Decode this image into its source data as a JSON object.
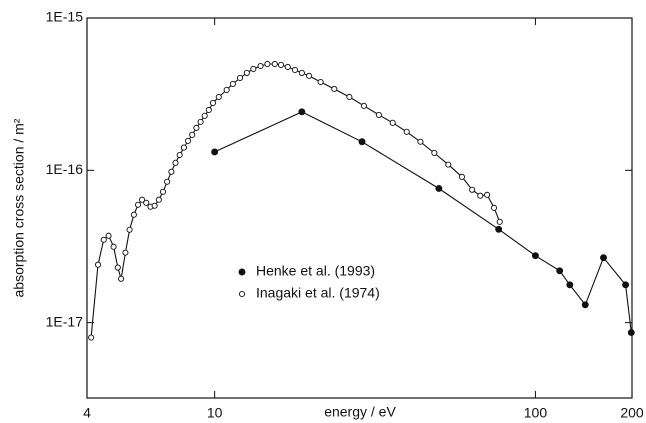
{
  "chart_data": {
    "type": "line",
    "xlabel": "energy / eV",
    "ylabel": "absorption cross section / m²",
    "xscale": "log",
    "yscale": "log",
    "xlim": [
      4,
      200
    ],
    "xticks": [
      4,
      10,
      100,
      200
    ],
    "ylim": [
      3.2e-18,
      1e-15
    ],
    "yticks": [
      {
        "value": 1e-17,
        "label": "1E-17"
      },
      {
        "value": 1e-16,
        "label": "1E-16"
      },
      {
        "value": 1e-15,
        "label": "1E-15"
      }
    ],
    "legend": "lower-center",
    "series": [
      {
        "name": "Henke et al. (1993)",
        "color": "#111111",
        "marker": "filled",
        "x": [
          10,
          18.7,
          28.8,
          50,
          76.8,
          100,
          119,
          128,
          143,
          163,
          191,
          199
        ],
        "values": [
          1.32e-16,
          2.42e-16,
          1.54e-16,
          7.6e-17,
          4.1e-17,
          2.75e-17,
          2.19e-17,
          1.77e-17,
          1.31e-17,
          2.67e-17,
          1.77e-17,
          8.6e-18
        ]
      },
      {
        "name": "Inagaki et al. (1974)",
        "color": "#111111",
        "marker": "open",
        "x": [
          4.12,
          4.33,
          4.51,
          4.67,
          4.84,
          4.99,
          5.11,
          5.27,
          5.43,
          5.6,
          5.77,
          5.94,
          6.12,
          6.31,
          6.5,
          6.7,
          6.9,
          7.11,
          7.33,
          7.55,
          7.78,
          8.02,
          8.26,
          8.51,
          8.77,
          9.04,
          9.31,
          9.59,
          9.88,
          10.3,
          10.9,
          11.4,
          12.0,
          12.6,
          13.2,
          13.9,
          14.6,
          15.4,
          16.1,
          16.9,
          17.8,
          18.7,
          19.7,
          21.4,
          23.6,
          26.3,
          29.2,
          32.5,
          35.9,
          39.7,
          43.8,
          48.4,
          53.5,
          59.0,
          63.5,
          67.3,
          70.7,
          74.3,
          77.4
        ],
        "values": [
          7.98e-18,
          2.4e-17,
          3.5e-17,
          3.72e-17,
          3.15e-17,
          2.3e-17,
          1.94e-17,
          2.88e-17,
          4.07e-17,
          5.11e-17,
          5.94e-17,
          6.41e-17,
          6.12e-17,
          5.77e-17,
          5.85e-17,
          6.41e-17,
          7.23e-17,
          8.41e-17,
          9.78e-17,
          1.12e-16,
          1.26e-16,
          1.41e-16,
          1.56e-16,
          1.71e-16,
          1.9e-16,
          2.08e-16,
          2.28e-16,
          2.49e-16,
          2.77e-16,
          3.03e-16,
          3.37e-16,
          3.69e-16,
          4.04e-16,
          4.36e-16,
          4.63e-16,
          4.84e-16,
          4.99e-16,
          4.99e-16,
          4.92e-16,
          4.77e-16,
          4.56e-16,
          4.36e-16,
          4.17e-16,
          3.8e-16,
          3.42e-16,
          3.03e-16,
          2.65e-16,
          2.31e-16,
          2.05e-16,
          1.79e-16,
          1.54e-16,
          1.3e-16,
          1.09e-16,
          9.06e-17,
          7.45e-17,
          6.81e-17,
          6.9e-17,
          5.67e-17,
          4.59e-17
        ]
      }
    ]
  }
}
